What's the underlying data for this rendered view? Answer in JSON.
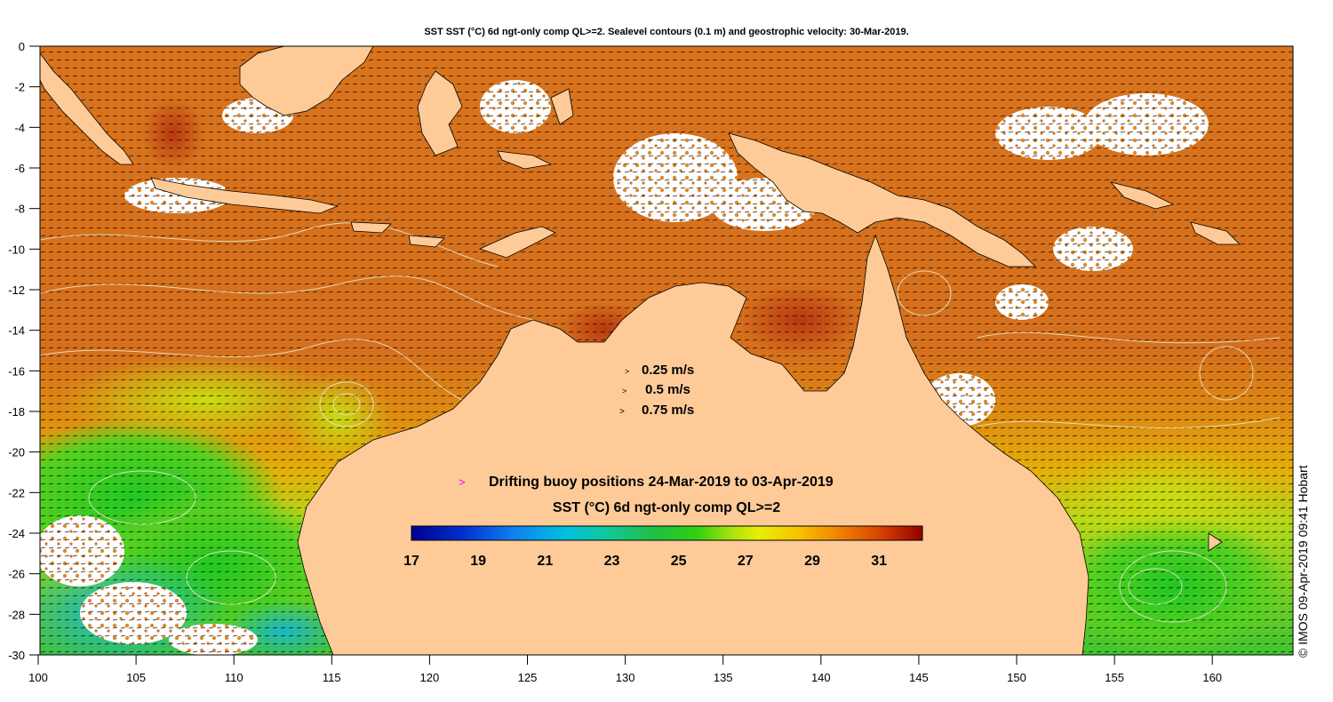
{
  "title": "SST SST (°C) 6d ngt-only comp QL>=2. Sealevel contours (0.1 m) and geostrophic velocity: 30-Mar-2019.",
  "credit": "© IMOS 09-Apr-2019 09:41 Hobart",
  "y_axis": {
    "ticks": [
      "0",
      "-2",
      "-4",
      "-6",
      "-8",
      "-10",
      "-12",
      "-14",
      "-16",
      "-18",
      "-20",
      "-22",
      "-24",
      "-26",
      "-28",
      "-30"
    ]
  },
  "x_axis": {
    "ticks": [
      "100",
      "105",
      "110",
      "115",
      "120",
      "125",
      "130",
      "135",
      "140",
      "145",
      "150",
      "155",
      "160"
    ]
  },
  "velocity_legend": [
    {
      "label": "0.25 m/s"
    },
    {
      "label": "0.5 m/s"
    },
    {
      "label": "0.75 m/s"
    }
  ],
  "buoy_legend": {
    "symbol": ">",
    "label": "Drifting buoy positions 24-Mar-2019 to 03-Apr-2019",
    "color": "#ff00ff"
  },
  "colorbar": {
    "title": "SST (°C) 6d ngt-only comp QL>=2",
    "ticks": [
      "17",
      "19",
      "21",
      "23",
      "25",
      "27",
      "29",
      "31"
    ],
    "range": [
      17,
      32.3
    ]
  },
  "colors": {
    "land": "#fecb98",
    "sst_warm": "#d4681a",
    "sst_hot": "#b83c10",
    "sst_mid": "#e8b000",
    "sst_cool": "#2cc82c",
    "sst_cold": "#1ab8c0",
    "cloud": "#ffffff"
  }
}
